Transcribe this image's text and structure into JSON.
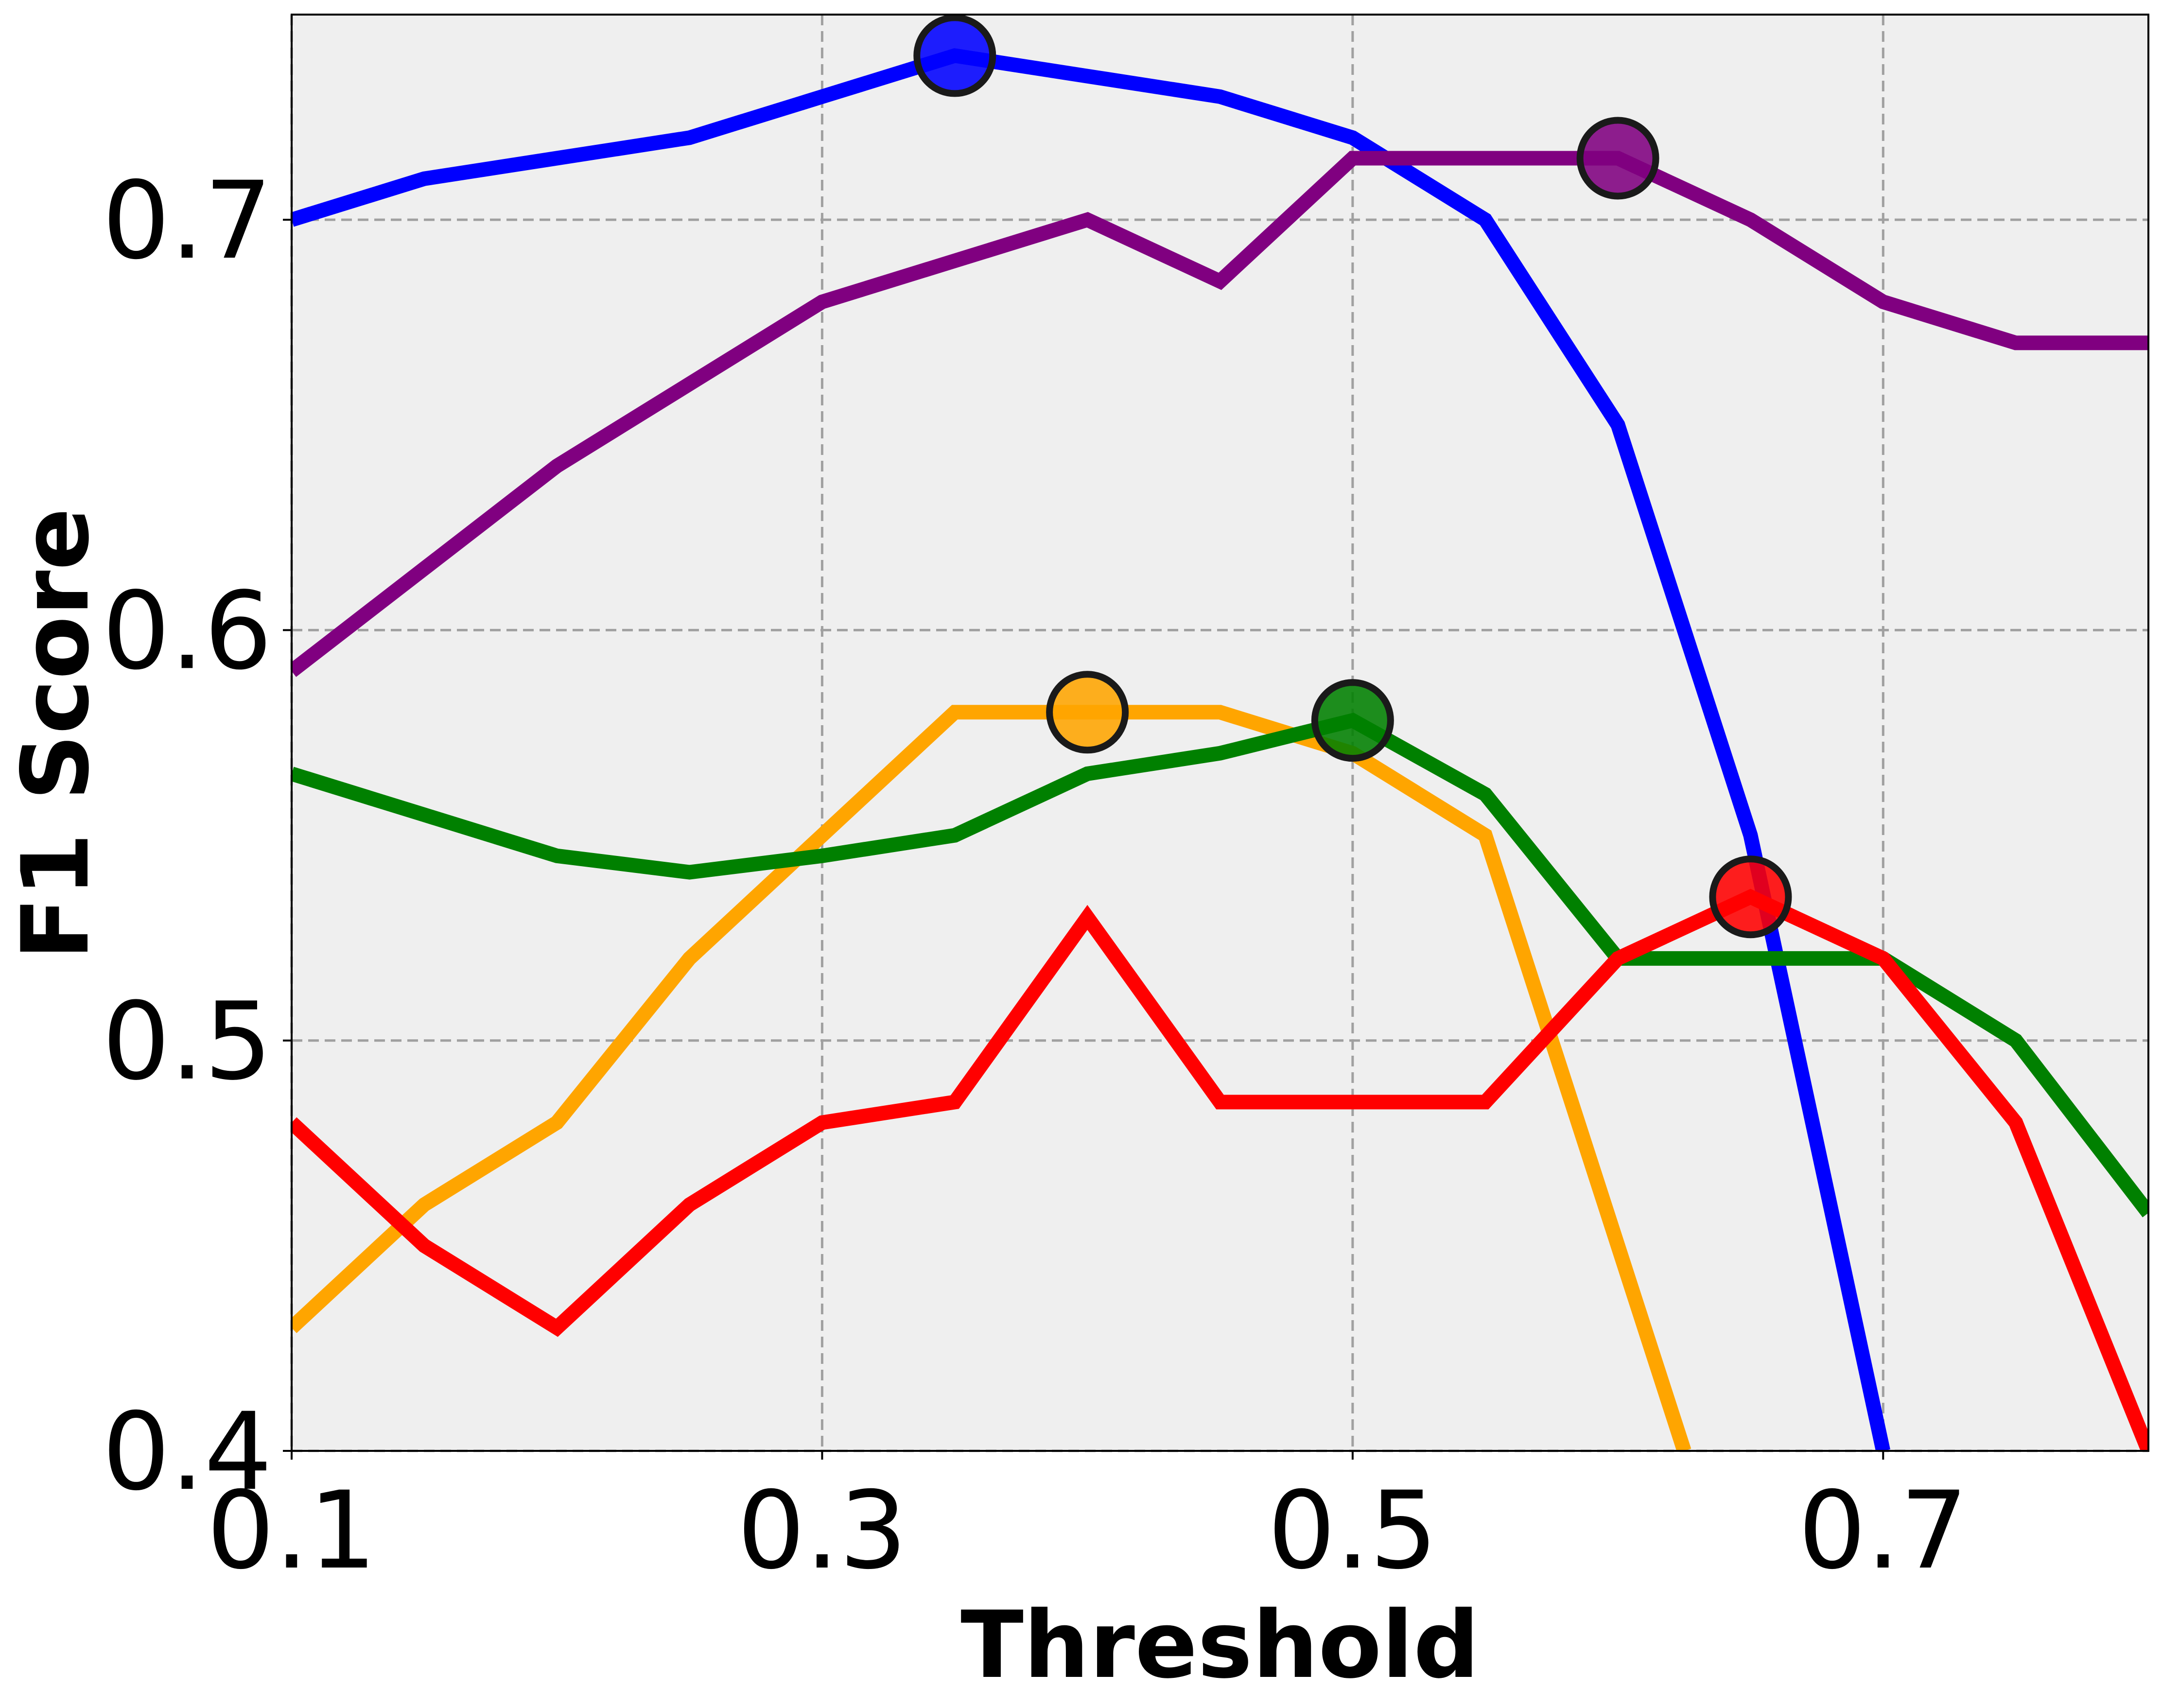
{
  "chart_data": {
    "type": "line",
    "title": "",
    "xlabel": "Threshold",
    "ylabel": "F1 Score",
    "xlim": [
      0.1,
      0.8
    ],
    "ylim": [
      0.4,
      0.75
    ],
    "xticks": [
      "0.1",
      "0.3",
      "0.5",
      "0.7"
    ],
    "yticks": [
      "0.4",
      "0.5",
      "0.6",
      "0.7"
    ],
    "grid": true,
    "background_color": "#efefef",
    "series": [
      {
        "color": "#0000ff",
        "x": [
          0.1,
          0.15,
          0.2,
          0.25,
          0.3,
          0.35,
          0.4,
          0.45,
          0.5,
          0.55,
          0.6,
          0.65,
          0.7
        ],
        "y": [
          0.7,
          0.71,
          0.715,
          0.72,
          0.73,
          0.74,
          0.735,
          0.73,
          0.72,
          0.7,
          0.65,
          0.55,
          0.4
        ],
        "best": {
          "x": 0.35,
          "y": 0.74
        }
      },
      {
        "color": "#800080",
        "x": [
          0.1,
          0.15,
          0.2,
          0.25,
          0.3,
          0.35,
          0.4,
          0.45,
          0.5,
          0.55,
          0.6,
          0.65,
          0.7,
          0.75,
          0.8
        ],
        "y": [
          0.59,
          0.615,
          0.64,
          0.66,
          0.68,
          0.69,
          0.7,
          0.685,
          0.715,
          0.715,
          0.715,
          0.7,
          0.68,
          0.67,
          0.67
        ],
        "best": {
          "x": 0.6,
          "y": 0.715
        }
      },
      {
        "color": "#ffa500",
        "x": [
          0.1,
          0.15,
          0.2,
          0.25,
          0.3,
          0.35,
          0.4,
          0.45,
          0.5,
          0.55,
          0.6,
          0.625
        ],
        "y": [
          0.43,
          0.46,
          0.48,
          0.52,
          0.55,
          0.58,
          0.58,
          0.58,
          0.57,
          0.55,
          0.45,
          0.4
        ],
        "best": {
          "x": 0.4,
          "y": 0.58
        }
      },
      {
        "color": "#008000",
        "x": [
          0.1,
          0.15,
          0.2,
          0.25,
          0.3,
          0.35,
          0.4,
          0.45,
          0.5,
          0.55,
          0.6,
          0.65,
          0.7,
          0.75,
          0.8
        ],
        "y": [
          0.565,
          0.555,
          0.545,
          0.541,
          0.545,
          0.55,
          0.565,
          0.57,
          0.578,
          0.56,
          0.52,
          0.52,
          0.52,
          0.5,
          0.458
        ],
        "best": {
          "x": 0.5,
          "y": 0.578
        }
      },
      {
        "color": "#ff0000",
        "x": [
          0.1,
          0.15,
          0.2,
          0.25,
          0.3,
          0.35,
          0.4,
          0.45,
          0.5,
          0.55,
          0.6,
          0.65,
          0.7,
          0.75,
          0.8
        ],
        "y": [
          0.48,
          0.45,
          0.43,
          0.46,
          0.48,
          0.485,
          0.53,
          0.485,
          0.485,
          0.485,
          0.52,
          0.535,
          0.52,
          0.48,
          0.4
        ],
        "best": {
          "x": 0.65,
          "y": 0.535
        }
      }
    ]
  }
}
